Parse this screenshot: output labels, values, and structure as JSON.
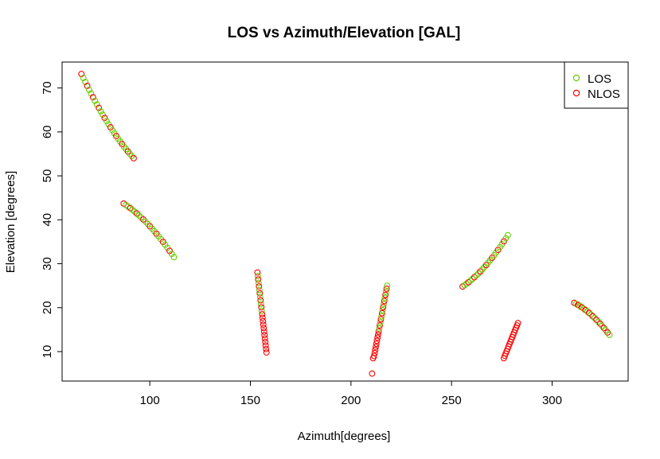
{
  "chart_data": {
    "type": "scatter",
    "title": "LOS vs Azimuth/Elevation [GAL]",
    "xlabel": "Azimuth[degrees]",
    "ylabel": "Elevation [degrees]",
    "xlim": [
      56.4,
      337.8
    ],
    "ylim": [
      3.3,
      75.9
    ],
    "x_ticks": [
      100,
      150,
      200,
      250,
      300
    ],
    "y_ticks": [
      10,
      20,
      30,
      40,
      50,
      60,
      70
    ],
    "grid": false,
    "legend_position": "top-right",
    "marker": "open-circle",
    "series": [
      {
        "name": "LOS",
        "color": "#66cc00"
      },
      {
        "name": "NLOS",
        "color": "#ff0000"
      }
    ],
    "arcs": [
      {
        "from": [
          66,
          73.2
        ],
        "to": [
          92,
          54
        ],
        "bend": -1.5,
        "n": 28,
        "nlos_every": 3
      },
      {
        "from": [
          87,
          43.7
        ],
        "to": [
          112,
          31.5
        ],
        "bend": 1.2,
        "n": 24,
        "nlos_every": 3
      },
      {
        "from": [
          153.5,
          28
        ],
        "to": [
          158,
          9.8
        ],
        "bend": 0,
        "n": 24,
        "nlos_every": 2,
        "nlos_from": 0.55
      },
      {
        "from": [
          211.5,
          9
        ],
        "to": [
          218,
          25
        ],
        "bend": 0,
        "n": 24,
        "nlos_every": 2,
        "nlos_until": 0.38
      },
      {
        "from": [
          255.5,
          24.8
        ],
        "to": [
          278,
          36.5
        ],
        "bend": -1.2,
        "n": 24,
        "nlos_every": 3
      },
      {
        "from": [
          276,
          8.5
        ],
        "to": [
          283,
          16.5
        ],
        "bend": 0,
        "n": 16,
        "nlos_every": 1
      },
      {
        "from": [
          311,
          21.1
        ],
        "to": [
          328.5,
          13.8
        ],
        "bend": 0.8,
        "n": 20,
        "nlos_every": 2
      }
    ],
    "nlos_extra_points": [
      [
        210.5,
        5
      ],
      [
        211,
        8.5
      ]
    ]
  }
}
